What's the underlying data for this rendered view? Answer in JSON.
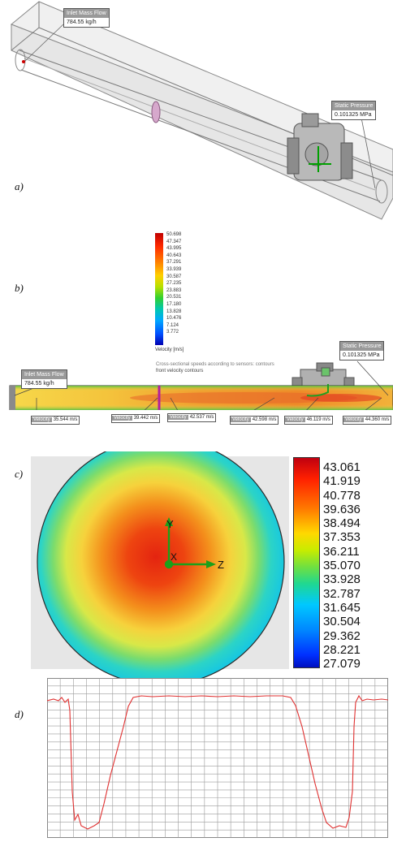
{
  "panels": {
    "a": {
      "label": "a)",
      "inlet": {
        "title": "Inlet Mass Flow",
        "value": "784.55 kg/h"
      },
      "outlet": {
        "title": "Static Pressure",
        "value": "0.101325 MPa"
      }
    },
    "b": {
      "label": "b)",
      "legend": {
        "values": [
          "50.698",
          "47.347",
          "43.995",
          "40.643",
          "37.291",
          "33.939",
          "30.587",
          "27.235",
          "23.883",
          "20.531",
          "17.180",
          "13.828",
          "10.476",
          "7.124",
          "3.772"
        ],
        "unit": "Velocity [m/s]"
      },
      "annotation_line1": "Cross-sectional speeds according to sensors: contours",
      "annotation_line2": "front velocity contours",
      "inlet": {
        "title": "Inlet Mass Flow",
        "value": "784.55 kg/h"
      },
      "outlet": {
        "title": "Static Pressure",
        "value": "0.101325 MPa"
      },
      "probes": [
        {
          "key": "Velocity",
          "value": "35.544 m/s"
        },
        {
          "key": "Velocity",
          "value": "39.442 m/s"
        },
        {
          "key": "Velocity",
          "value": "42.537 m/s"
        },
        {
          "key": "Velocity",
          "value": "42.598 m/s"
        },
        {
          "key": "Velocity",
          "value": "46.119 m/s"
        },
        {
          "key": "Velocity",
          "value": "44.360 m/s"
        }
      ]
    },
    "c": {
      "label": "c)",
      "legend": [
        "43.061",
        "41.919",
        "40.778",
        "39.636",
        "38.494",
        "37.353",
        "36.211",
        "35.070",
        "33.928",
        "32.787",
        "31.645",
        "30.504",
        "29.362",
        "28.221",
        "27.079"
      ],
      "axes": {
        "y": "Y",
        "z": "Z",
        "x": "X"
      }
    },
    "d": {
      "label": "d)"
    }
  }
}
